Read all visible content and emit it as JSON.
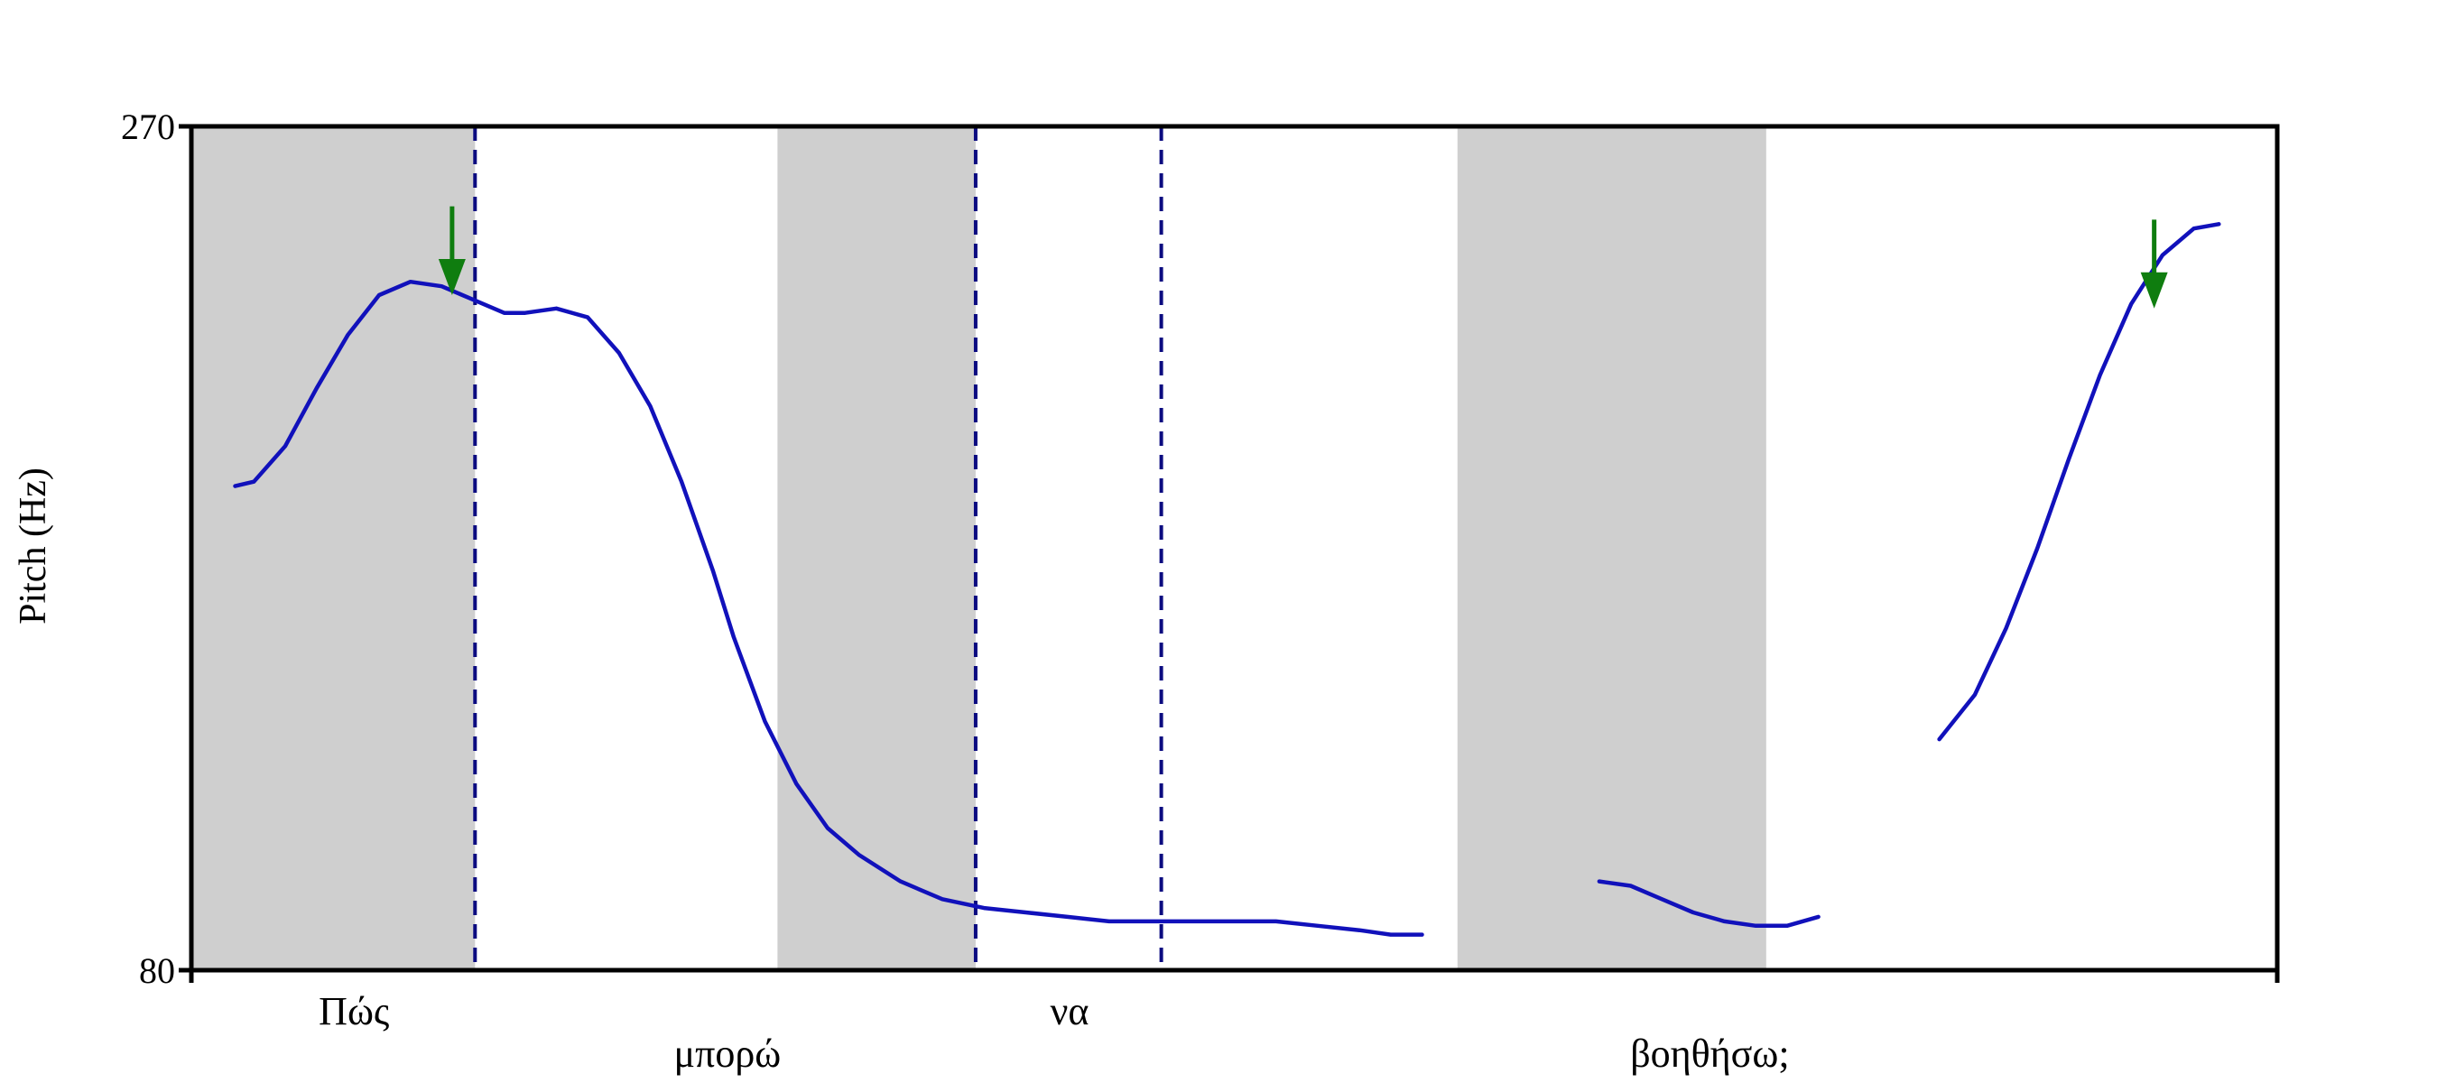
{
  "chart_data": {
    "type": "line",
    "title": "",
    "xlabel": "",
    "ylabel": "Pitch (Hz)",
    "ylim": [
      80,
      270
    ],
    "yticks": [
      80,
      270
    ],
    "xlim": [
      0,
      1
    ],
    "grid": false,
    "colors": {
      "contour": "#1111bb",
      "shade": "#cfcfcf",
      "boundary": "#0b0b80",
      "arrow": "#0f7d0f",
      "axis": "#000000"
    },
    "shaded_regions": [
      [
        0.0,
        0.136
      ],
      [
        0.281,
        0.376
      ],
      [
        0.607,
        0.755
      ]
    ],
    "boundaries": [
      0.136,
      0.376,
      0.465
    ],
    "arrows": [
      {
        "x": 0.125,
        "from": 252,
        "to": 232
      },
      {
        "x": 0.941,
        "from": 249,
        "to": 229
      }
    ],
    "words": [
      {
        "text": "Πώς",
        "x": 0.078,
        "row": 0
      },
      {
        "text": "μπορώ",
        "x": 0.257,
        "row": 1
      },
      {
        "text": "να",
        "x": 0.421,
        "row": 0
      },
      {
        "text": "βοηθήσω;",
        "x": 0.728,
        "row": 1
      }
    ],
    "series": [
      {
        "name": "",
        "segments": [
          [
            [
              0.021,
              189
            ],
            [
              0.03,
              190
            ],
            [
              0.045,
              198
            ],
            [
              0.06,
              211
            ],
            [
              0.075,
              223
            ],
            [
              0.09,
              232
            ],
            [
              0.105,
              235
            ],
            [
              0.12,
              234
            ],
            [
              0.135,
              231
            ],
            [
              0.15,
              228
            ],
            [
              0.16,
              228
            ],
            [
              0.175,
              229
            ],
            [
              0.19,
              227
            ],
            [
              0.205,
              219
            ],
            [
              0.22,
              207
            ],
            [
              0.235,
              190
            ],
            [
              0.25,
              170
            ],
            [
              0.26,
              155
            ],
            [
              0.275,
              136
            ],
            [
              0.29,
              122
            ],
            [
              0.305,
              112
            ],
            [
              0.32,
              106
            ],
            [
              0.34,
              100
            ],
            [
              0.36,
              96
            ],
            [
              0.38,
              94
            ],
            [
              0.4,
              93
            ],
            [
              0.42,
              92
            ],
            [
              0.44,
              91
            ],
            [
              0.46,
              91
            ],
            [
              0.48,
              91
            ],
            [
              0.5,
              91
            ],
            [
              0.52,
              91
            ],
            [
              0.54,
              90
            ],
            [
              0.56,
              89
            ],
            [
              0.575,
              88
            ],
            [
              0.59,
              88
            ]
          ],
          [
            [
              0.675,
              100
            ],
            [
              0.69,
              99
            ],
            [
              0.705,
              96
            ],
            [
              0.72,
              93
            ],
            [
              0.735,
              91
            ],
            [
              0.75,
              90
            ],
            [
              0.765,
              90
            ],
            [
              0.78,
              92
            ]
          ],
          [
            [
              0.838,
              132
            ],
            [
              0.855,
              142
            ],
            [
              0.87,
              157
            ],
            [
              0.885,
              175
            ],
            [
              0.9,
              195
            ],
            [
              0.915,
              214
            ],
            [
              0.93,
              230
            ],
            [
              0.945,
              241
            ],
            [
              0.96,
              247
            ],
            [
              0.972,
              248
            ]
          ]
        ]
      }
    ]
  }
}
